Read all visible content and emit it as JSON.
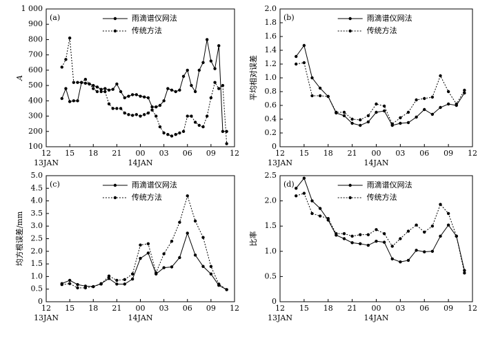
{
  "chart_data": [
    {
      "type": "line",
      "panel_label": "(a)",
      "ylabel": "A",
      "x": [
        14,
        14.5,
        15,
        15.5,
        16,
        16.5,
        17,
        17.5,
        18,
        18.5,
        19,
        19.5,
        20,
        20.5,
        21,
        21.5,
        22,
        22.5,
        23,
        23.5,
        24,
        24.5,
        25,
        25.5,
        26,
        26.5,
        27,
        27.5,
        28,
        28.5,
        29,
        29.5,
        30,
        30.5,
        31,
        31.5,
        32,
        32.5,
        33,
        33.5,
        34,
        34.5,
        35
      ],
      "series": [
        {
          "name": "雨滴谱仪网法",
          "color": "#000000",
          "line_style": "solid",
          "values": [
            415,
            480,
            395,
            400,
            400,
            520,
            515,
            510,
            500,
            490,
            475,
            480,
            470,
            475,
            510,
            460,
            420,
            430,
            440,
            440,
            430,
            425,
            420,
            360,
            360,
            370,
            400,
            480,
            470,
            460,
            470,
            560,
            600,
            500,
            460,
            600,
            650,
            800,
            660,
            610,
            760,
            200,
            200
          ]
        },
        {
          "name": "传统方法",
          "color": "#000000",
          "line_style": "dotted",
          "values": [
            620,
            670,
            810,
            520,
            520,
            520,
            540,
            510,
            480,
            460,
            460,
            460,
            380,
            350,
            350,
            350,
            320,
            310,
            305,
            310,
            300,
            310,
            320,
            340,
            300,
            230,
            190,
            180,
            170,
            180,
            190,
            200,
            300,
            300,
            260,
            240,
            230,
            300,
            420,
            520,
            480,
            500,
            120
          ]
        }
      ],
      "xlim": [
        12,
        36
      ],
      "xticks": [
        12,
        15,
        18,
        21,
        {
          "value": 24,
          "label": "00"
        },
        {
          "value": 27,
          "label": "03"
        },
        {
          "value": 30,
          "label": "06"
        },
        {
          "value": 33,
          "label": "09"
        },
        {
          "value": 36,
          "label": "12"
        }
      ],
      "x_date_labels": [
        {
          "value": 12,
          "label": "13JAN"
        },
        {
          "value": 24,
          "label": "14JAN"
        }
      ],
      "ylim": [
        100,
        1000
      ],
      "yticks": [
        100,
        200,
        300,
        400,
        500,
        600,
        700,
        800,
        900,
        {
          "value": 1000,
          "label": "1 000"
        }
      ]
    },
    {
      "type": "line",
      "panel_label": "(b)",
      "ylabel": "平均相对误差",
      "x": [
        14,
        15,
        16,
        17,
        18,
        19,
        20,
        21,
        22,
        23,
        24,
        25,
        26,
        27,
        28,
        29,
        30,
        31,
        32,
        33,
        34,
        35
      ],
      "series": [
        {
          "name": "雨滴谱仪网法",
          "color": "#000000",
          "line_style": "solid",
          "values": [
            1.31,
            1.47,
            1.0,
            0.85,
            0.73,
            0.49,
            0.45,
            0.34,
            0.31,
            0.36,
            0.5,
            0.52,
            0.31,
            0.34,
            0.35,
            0.43,
            0.54,
            0.47,
            0.57,
            0.62,
            0.6,
            0.78
          ]
        },
        {
          "name": "传统方法",
          "color": "#000000",
          "line_style": "dotted",
          "values": [
            1.2,
            1.22,
            0.74,
            0.74,
            0.73,
            0.5,
            0.5,
            0.4,
            0.39,
            0.45,
            0.62,
            0.59,
            0.33,
            0.42,
            0.5,
            0.68,
            0.7,
            0.72,
            1.03,
            0.8,
            0.62,
            0.82
          ]
        }
      ],
      "xlim": [
        12,
        36
      ],
      "xticks": [
        12,
        15,
        18,
        21,
        {
          "value": 24,
          "label": "00"
        },
        {
          "value": 27,
          "label": "03"
        },
        {
          "value": 30,
          "label": "06"
        },
        {
          "value": 33,
          "label": "09"
        },
        {
          "value": 36,
          "label": "12"
        }
      ],
      "x_date_labels": [
        {
          "value": 12,
          "label": "13JAN"
        },
        {
          "value": 24,
          "label": "14JAN"
        }
      ],
      "ylim": [
        0,
        2
      ],
      "yticks": [
        0,
        0.2,
        0.4,
        0.6,
        0.8,
        {
          "value": 1,
          "label": "1.0"
        },
        1.2,
        1.4,
        1.6,
        1.8,
        {
          "value": 2,
          "label": "2.0"
        }
      ]
    },
    {
      "type": "line",
      "panel_label": "(c)",
      "ylabel": "均方根误差/mm",
      "x": [
        14,
        15,
        16,
        17,
        18,
        19,
        20,
        21,
        22,
        23,
        24,
        25,
        26,
        27,
        28,
        29,
        30,
        31,
        32,
        33,
        34,
        35
      ],
      "series": [
        {
          "name": "雨滴谱仪网法",
          "color": "#000000",
          "line_style": "solid",
          "values": [
            0.72,
            0.85,
            0.68,
            0.62,
            0.6,
            0.72,
            0.92,
            0.7,
            0.7,
            0.9,
            1.72,
            1.93,
            1.1,
            1.35,
            1.38,
            1.75,
            2.72,
            1.85,
            1.4,
            1.1,
            0.65,
            0.48
          ]
        },
        {
          "name": "传统方法",
          "color": "#000000",
          "line_style": "dotted",
          "values": [
            0.68,
            0.72,
            0.55,
            0.55,
            0.6,
            0.7,
            1.02,
            0.85,
            0.88,
            1.1,
            2.25,
            2.3,
            1.15,
            1.9,
            2.4,
            3.15,
            4.2,
            3.2,
            2.55,
            1.4,
            0.7,
            0.48
          ]
        }
      ],
      "xlim": [
        12,
        36
      ],
      "xticks": [
        12,
        15,
        18,
        21,
        {
          "value": 24,
          "label": "00"
        },
        {
          "value": 27,
          "label": "03"
        },
        {
          "value": 30,
          "label": "06"
        },
        {
          "value": 33,
          "label": "09"
        },
        {
          "value": 36,
          "label": "12"
        }
      ],
      "x_date_labels": [
        {
          "value": 12,
          "label": "13JAN"
        },
        {
          "value": 24,
          "label": "14JAN"
        }
      ],
      "ylim": [
        0,
        5
      ],
      "yticks": [
        0,
        0.5,
        {
          "value": 1,
          "label": "1.0"
        },
        1.5,
        {
          "value": 2,
          "label": "2.0"
        },
        2.5,
        {
          "value": 3,
          "label": "3.0"
        },
        3.5,
        {
          "value": 4,
          "label": "4.0"
        },
        4.5,
        {
          "value": 5,
          "label": "5.0"
        }
      ]
    },
    {
      "type": "line",
      "panel_label": "(d)",
      "ylabel": "比率",
      "x": [
        14,
        15,
        16,
        17,
        18,
        19,
        20,
        21,
        22,
        23,
        24,
        25,
        26,
        27,
        28,
        29,
        30,
        31,
        32,
        33,
        34,
        35
      ],
      "series": [
        {
          "name": "雨滴谱仪网法",
          "color": "#000000",
          "line_style": "solid",
          "values": [
            2.25,
            2.45,
            2.0,
            1.85,
            1.62,
            1.32,
            1.25,
            1.17,
            1.15,
            1.12,
            1.2,
            1.18,
            0.85,
            0.79,
            0.82,
            1.02,
            0.99,
            1.0,
            1.3,
            1.52,
            1.3,
            0.62
          ]
        },
        {
          "name": "传统方法",
          "color": "#000000",
          "line_style": "dotted",
          "values": [
            2.1,
            2.15,
            1.75,
            1.7,
            1.65,
            1.35,
            1.35,
            1.3,
            1.33,
            1.33,
            1.43,
            1.35,
            1.1,
            1.25,
            1.4,
            1.52,
            1.38,
            1.5,
            1.93,
            1.75,
            1.3,
            0.57
          ]
        }
      ],
      "xlim": [
        12,
        36
      ],
      "xticks": [
        12,
        15,
        18,
        21,
        {
          "value": 24,
          "label": "00"
        },
        {
          "value": 27,
          "label": "03"
        },
        {
          "value": 30,
          "label": "06"
        },
        {
          "value": 33,
          "label": "09"
        },
        {
          "value": 36,
          "label": "12"
        }
      ],
      "x_date_labels": [
        {
          "value": 12,
          "label": "13JAN"
        },
        {
          "value": 24,
          "label": "14JAN"
        }
      ],
      "ylim": [
        0,
        2.5
      ],
      "yticks": [
        0,
        0.5,
        {
          "value": 1,
          "label": "1.0"
        },
        1.5,
        {
          "value": 2,
          "label": "2.0"
        },
        {
          "value": 2.5,
          "label": "2.5"
        }
      ]
    }
  ]
}
